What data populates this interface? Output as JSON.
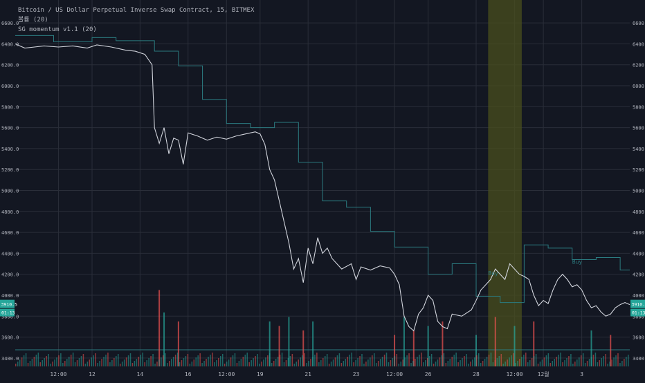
{
  "header": {
    "symbol_line": "Bitcoin / US Dollar Perpetual Inverse Swap Contract, 15, BITMEX",
    "indicator_1": "볼륨 (20)",
    "indicator_2": "SG momentum v1.1 (20)"
  },
  "colors": {
    "background": "#131722",
    "grid": "#2a2e39",
    "candle_line": "#d1d4dc",
    "candle_down": "#ef5350",
    "candle_up": "#26a69a",
    "indicator_line": "#2b7b80",
    "highlight_band": "#4a4f1e",
    "price_badge": "#26a69a",
    "text": "#b2b5be"
  },
  "chart_data": {
    "type": "line",
    "price_axis": {
      "ticks": [
        "6600.0",
        "6400.0",
        "6200.0",
        "6000.0",
        "5800.0",
        "5600.0",
        "5400.0",
        "5200.0",
        "5000.0",
        "4800.0",
        "4600.0",
        "4400.0",
        "4200.0",
        "4000.0",
        "3800.0",
        "3600.0",
        "3400.0"
      ],
      "ylim": [
        3320,
        6700
      ]
    },
    "time_axis": {
      "labels": [
        "12:00",
        "12",
        "14",
        "16",
        "12:00",
        "19",
        "21",
        "23",
        "12:00",
        "26",
        "28",
        "12:00",
        "12월",
        "3"
      ],
      "positions": [
        0.3,
        1.0,
        2.0,
        3.0,
        3.8,
        4.5,
        5.5,
        6.5,
        7.3,
        8.0,
        9.0,
        9.8,
        10.4,
        11.2
      ],
      "xlim": [
        -0.6,
        12.2
      ]
    },
    "current_price_badge": "3910.5",
    "countdown_badge": "01:13",
    "price_series": [
      [
        -0.6,
        6400
      ],
      [
        -0.4,
        6360
      ],
      [
        -0.2,
        6370
      ],
      [
        0.0,
        6380
      ],
      [
        0.3,
        6370
      ],
      [
        0.6,
        6380
      ],
      [
        0.9,
        6360
      ],
      [
        1.1,
        6390
      ],
      [
        1.4,
        6370
      ],
      [
        1.7,
        6340
      ],
      [
        1.9,
        6330
      ],
      [
        2.1,
        6300
      ],
      [
        2.25,
        6200
      ],
      [
        2.3,
        5600
      ],
      [
        2.4,
        5450
      ],
      [
        2.5,
        5600
      ],
      [
        2.6,
        5350
      ],
      [
        2.7,
        5500
      ],
      [
        2.8,
        5480
      ],
      [
        2.9,
        5250
      ],
      [
        3.0,
        5550
      ],
      [
        3.2,
        5520
      ],
      [
        3.4,
        5480
      ],
      [
        3.6,
        5510
      ],
      [
        3.8,
        5490
      ],
      [
        4.0,
        5520
      ],
      [
        4.2,
        5540
      ],
      [
        4.4,
        5560
      ],
      [
        4.5,
        5540
      ],
      [
        4.6,
        5440
      ],
      [
        4.7,
        5200
      ],
      [
        4.8,
        5100
      ],
      [
        4.9,
        4900
      ],
      [
        5.0,
        4700
      ],
      [
        5.1,
        4500
      ],
      [
        5.2,
        4250
      ],
      [
        5.3,
        4350
      ],
      [
        5.4,
        4120
      ],
      [
        5.5,
        4450
      ],
      [
        5.6,
        4300
      ],
      [
        5.7,
        4550
      ],
      [
        5.8,
        4400
      ],
      [
        5.9,
        4450
      ],
      [
        6.0,
        4350
      ],
      [
        6.2,
        4250
      ],
      [
        6.4,
        4300
      ],
      [
        6.5,
        4150
      ],
      [
        6.6,
        4270
      ],
      [
        6.8,
        4240
      ],
      [
        7.0,
        4280
      ],
      [
        7.2,
        4260
      ],
      [
        7.3,
        4200
      ],
      [
        7.4,
        4100
      ],
      [
        7.5,
        3800
      ],
      [
        7.6,
        3700
      ],
      [
        7.7,
        3660
      ],
      [
        7.8,
        3820
      ],
      [
        7.9,
        3880
      ],
      [
        8.0,
        4000
      ],
      [
        8.1,
        3950
      ],
      [
        8.2,
        3750
      ],
      [
        8.3,
        3700
      ],
      [
        8.4,
        3680
      ],
      [
        8.5,
        3820
      ],
      [
        8.7,
        3800
      ],
      [
        8.9,
        3860
      ],
      [
        9.0,
        3950
      ],
      [
        9.1,
        4050
      ],
      [
        9.2,
        4100
      ],
      [
        9.3,
        4150
      ],
      [
        9.4,
        4250
      ],
      [
        9.5,
        4200
      ],
      [
        9.6,
        4150
      ],
      [
        9.7,
        4300
      ],
      [
        9.8,
        4250
      ],
      [
        9.9,
        4200
      ],
      [
        10.0,
        4180
      ],
      [
        10.1,
        4150
      ],
      [
        10.2,
        4000
      ],
      [
        10.3,
        3900
      ],
      [
        10.4,
        3950
      ],
      [
        10.5,
        3920
      ],
      [
        10.6,
        4050
      ],
      [
        10.7,
        4150
      ],
      [
        10.8,
        4200
      ],
      [
        10.9,
        4150
      ],
      [
        11.0,
        4080
      ],
      [
        11.1,
        4100
      ],
      [
        11.2,
        4050
      ],
      [
        11.3,
        3950
      ],
      [
        11.4,
        3880
      ],
      [
        11.5,
        3900
      ],
      [
        11.6,
        3840
      ],
      [
        11.7,
        3800
      ],
      [
        11.8,
        3820
      ],
      [
        11.9,
        3880
      ],
      [
        12.0,
        3910
      ],
      [
        12.1,
        3930
      ],
      [
        12.2,
        3910
      ]
    ],
    "momentum_steps": [
      [
        -0.6,
        6480
      ],
      [
        0.2,
        6480
      ],
      [
        0.2,
        6420
      ],
      [
        1.0,
        6420
      ],
      [
        1.0,
        6460
      ],
      [
        1.5,
        6460
      ],
      [
        1.5,
        6430
      ],
      [
        2.3,
        6430
      ],
      [
        2.3,
        6330
      ],
      [
        2.8,
        6330
      ],
      [
        2.8,
        6190
      ],
      [
        3.3,
        6190
      ],
      [
        3.3,
        5870
      ],
      [
        3.8,
        5870
      ],
      [
        3.8,
        5640
      ],
      [
        4.3,
        5640
      ],
      [
        4.3,
        5600
      ],
      [
        4.8,
        5600
      ],
      [
        4.8,
        5650
      ],
      [
        5.3,
        5650
      ],
      [
        5.3,
        5270
      ],
      [
        5.8,
        5270
      ],
      [
        5.8,
        4900
      ],
      [
        6.3,
        4900
      ],
      [
        6.3,
        4840
      ],
      [
        6.8,
        4840
      ],
      [
        6.8,
        4610
      ],
      [
        7.3,
        4610
      ],
      [
        7.3,
        4460
      ],
      [
        8.0,
        4460
      ],
      [
        8.0,
        4200
      ],
      [
        8.5,
        4200
      ],
      [
        8.5,
        4300
      ],
      [
        9.0,
        4300
      ],
      [
        9.0,
        3990
      ],
      [
        9.5,
        3990
      ],
      [
        9.5,
        3930
      ],
      [
        10.0,
        3930
      ],
      [
        10.0,
        4480
      ],
      [
        10.5,
        4480
      ],
      [
        10.5,
        4450
      ],
      [
        11.0,
        4450
      ],
      [
        11.0,
        4340
      ],
      [
        11.5,
        4340
      ],
      [
        11.5,
        4360
      ],
      [
        12.0,
        4360
      ],
      [
        12.0,
        4240
      ],
      [
        12.2,
        4240
      ]
    ],
    "highlight_band": {
      "x_start": 9.25,
      "x_end": 9.95
    },
    "annotations": [
      {
        "text": "Buy",
        "x": 9.25,
        "y": 4190
      },
      {
        "text": "Buy",
        "x": 11.0,
        "y": 4300
      }
    ],
    "volume_spikes": [
      [
        2.4,
        0.85
      ],
      [
        2.5,
        0.6
      ],
      [
        2.8,
        0.5
      ],
      [
        4.7,
        0.5
      ],
      [
        4.9,
        0.45
      ],
      [
        5.1,
        0.55
      ],
      [
        5.4,
        0.4
      ],
      [
        5.6,
        0.5
      ],
      [
        7.3,
        0.35
      ],
      [
        7.5,
        0.55
      ],
      [
        7.7,
        0.4
      ],
      [
        8.0,
        0.45
      ],
      [
        8.3,
        0.5
      ],
      [
        9.0,
        0.35
      ],
      [
        9.4,
        0.55
      ],
      [
        9.8,
        0.45
      ],
      [
        10.2,
        0.5
      ],
      [
        11.4,
        0.4
      ],
      [
        11.8,
        0.35
      ]
    ]
  }
}
